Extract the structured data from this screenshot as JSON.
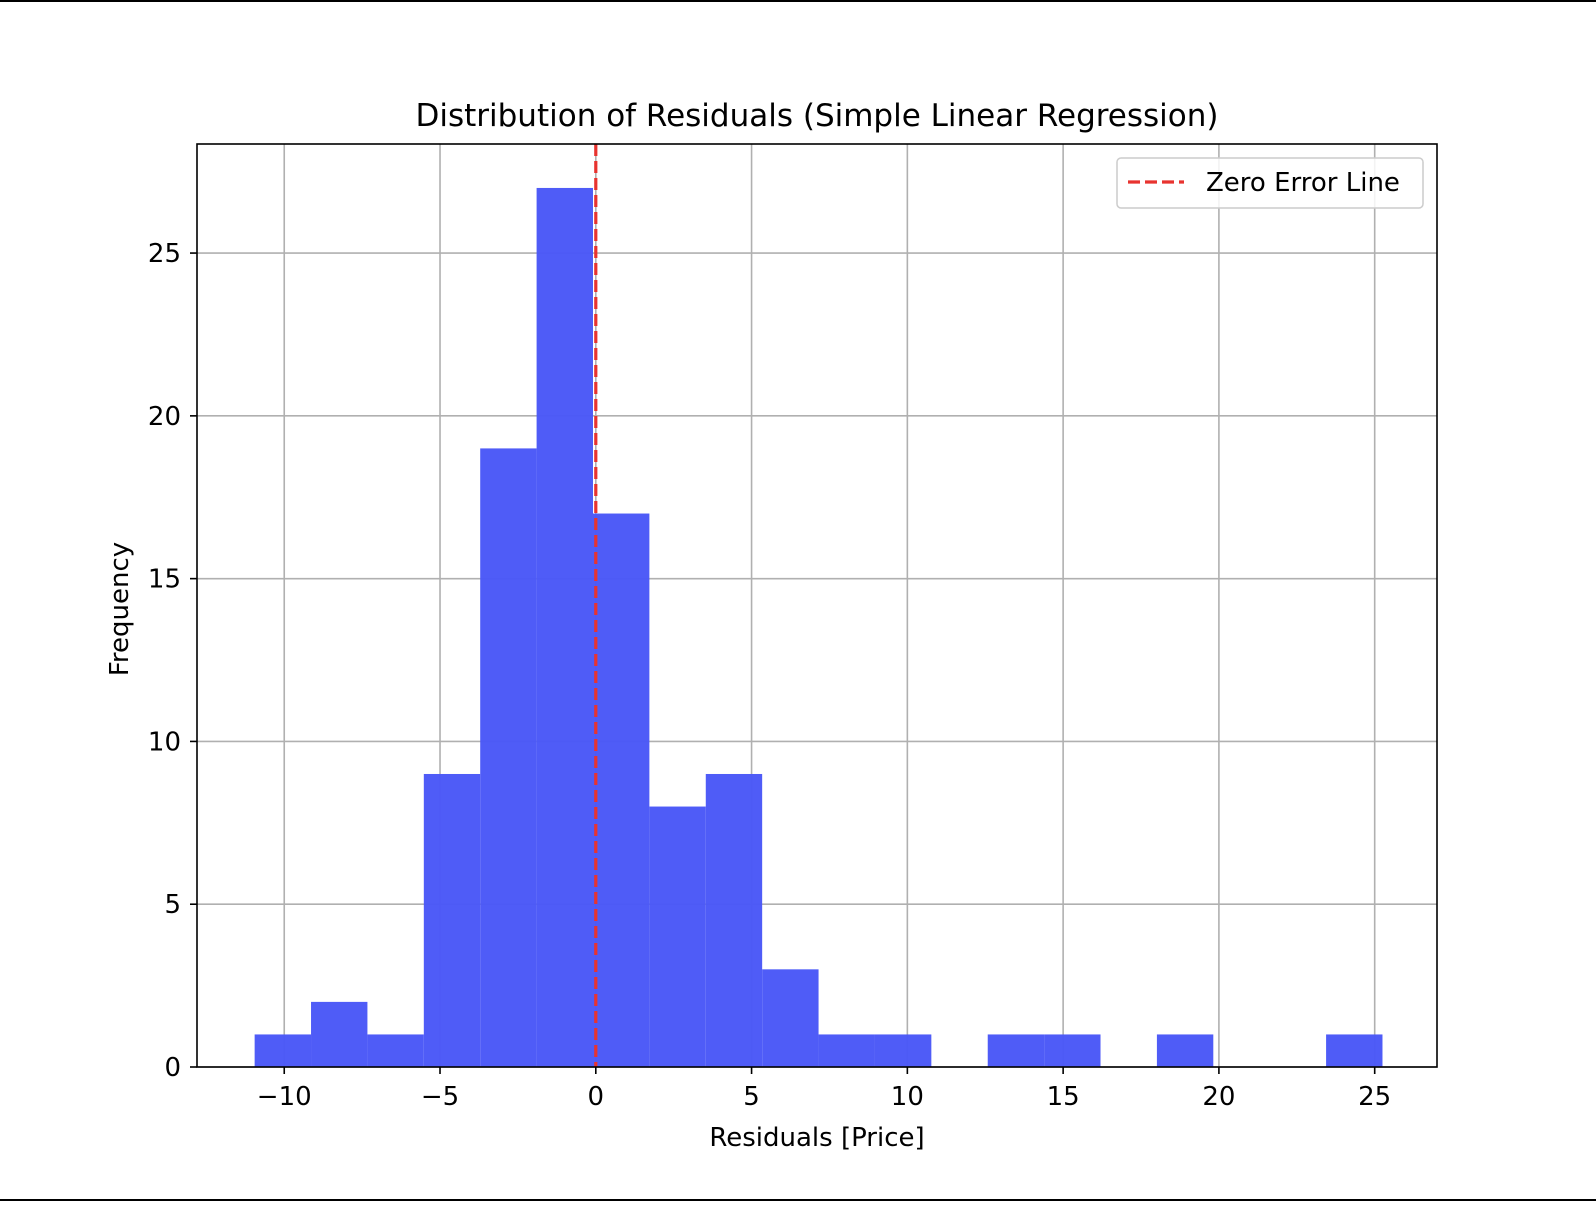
{
  "chart_data": {
    "type": "bar",
    "title": "Distribution of Residuals (Simple Linear Regression)",
    "xlabel": "Residuals [Price]",
    "ylabel": "Frequency",
    "xlim": [
      -12.8,
      27.0
    ],
    "ylim": [
      0,
      28.35
    ],
    "xticks": [
      -10,
      -5,
      0,
      5,
      10,
      15,
      20,
      25
    ],
    "xtick_labels": [
      "−10",
      "−5",
      "0",
      "5",
      "10",
      "15",
      "20",
      "25"
    ],
    "yticks": [
      0,
      5,
      10,
      15,
      20,
      25
    ],
    "ytick_labels": [
      "0",
      "5",
      "10",
      "15",
      "20",
      "25"
    ],
    "grid": true,
    "bins": [
      {
        "x0": -10.95,
        "x1": -9.14,
        "count": 1
      },
      {
        "x0": -9.14,
        "x1": -7.33,
        "count": 2
      },
      {
        "x0": -7.33,
        "x1": -5.52,
        "count": 1
      },
      {
        "x0": -5.52,
        "x1": -3.71,
        "count": 9
      },
      {
        "x0": -3.71,
        "x1": -1.9,
        "count": 19
      },
      {
        "x0": -1.9,
        "x1": -0.09,
        "count": 27
      },
      {
        "x0": -0.09,
        "x1": 1.72,
        "count": 17
      },
      {
        "x0": 1.72,
        "x1": 3.53,
        "count": 8
      },
      {
        "x0": 3.53,
        "x1": 5.34,
        "count": 9
      },
      {
        "x0": 5.34,
        "x1": 7.15,
        "count": 3
      },
      {
        "x0": 7.15,
        "x1": 8.96,
        "count": 1
      },
      {
        "x0": 8.96,
        "x1": 10.77,
        "count": 1
      },
      {
        "x0": 10.77,
        "x1": 12.58,
        "count": 0
      },
      {
        "x0": 12.58,
        "x1": 14.39,
        "count": 1
      },
      {
        "x0": 14.39,
        "x1": 16.2,
        "count": 1
      },
      {
        "x0": 16.2,
        "x1": 18.01,
        "count": 0
      },
      {
        "x0": 18.01,
        "x1": 19.82,
        "count": 1
      },
      {
        "x0": 19.82,
        "x1": 21.63,
        "count": 0
      },
      {
        "x0": 21.63,
        "x1": 23.44,
        "count": 0
      },
      {
        "x0": 23.44,
        "x1": 25.25,
        "count": 1
      }
    ],
    "bar_color": "#4957f7",
    "reference_line": {
      "x": 0,
      "label": "Zero Error Line",
      "color": "#e8332f",
      "style": "dashed"
    },
    "legend": {
      "position": "top-right",
      "entries": [
        "Zero Error Line"
      ]
    }
  }
}
